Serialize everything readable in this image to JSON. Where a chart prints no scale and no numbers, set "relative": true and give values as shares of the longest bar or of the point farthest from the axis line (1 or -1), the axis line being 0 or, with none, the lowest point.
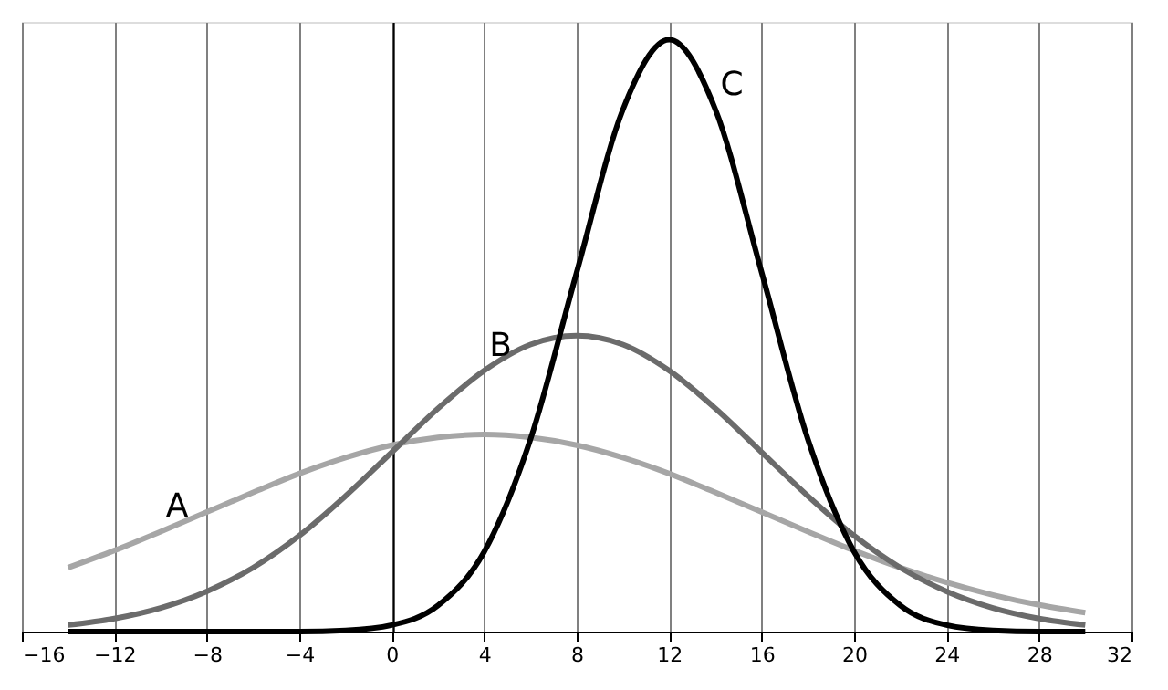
{
  "chart_data": {
    "type": "line",
    "relative": true,
    "x": [
      -14,
      -12,
      -10,
      -8,
      -6,
      -4,
      -2,
      0,
      2,
      4,
      6,
      8,
      10,
      12,
      14,
      16,
      18,
      20,
      22,
      24,
      26,
      28,
      30
    ],
    "series": [
      {
        "color": "#a6a6a6",
        "values": [
          0.108,
          0.137,
          0.169,
          0.202,
          0.235,
          0.267,
          0.294,
          0.315,
          0.328,
          0.333,
          0.328,
          0.315,
          0.294,
          0.267,
          0.235,
          0.202,
          0.169,
          0.137,
          0.108,
          0.083,
          0.062,
          0.045,
          0.032
        ]
      },
      {
        "color": "#6b6b6b",
        "values": [
          0.011,
          0.022,
          0.04,
          0.068,
          0.108,
          0.162,
          0.229,
          0.303,
          0.377,
          0.441,
          0.485,
          0.5,
          0.485,
          0.441,
          0.377,
          0.303,
          0.229,
          0.162,
          0.108,
          0.068,
          0.04,
          0.022,
          0.011
        ]
      },
      {
        "color": "#000000",
        "values": [
          0,
          0,
          0,
          0,
          0,
          0,
          0.002,
          0.011,
          0.044,
          0.135,
          0.325,
          0.607,
          0.882,
          1,
          0.882,
          0.607,
          0.325,
          0.135,
          0.044,
          0.011,
          0.002,
          0,
          0
        ]
      }
    ],
    "annotations": [
      {
        "text": "A",
        "x": -10,
        "y": 0.169
      },
      {
        "text": "B",
        "x": 4,
        "y": 0.441
      },
      {
        "text": "C",
        "x": 14,
        "y": 0.882
      }
    ],
    "xlim": [
      -16,
      32
    ],
    "xticks": [
      -16,
      -12,
      -8,
      -4,
      0,
      4,
      8,
      12,
      16,
      20,
      24,
      28,
      32
    ],
    "grid": "x",
    "legend": false,
    "marker": "none",
    "line_style": "solid"
  }
}
